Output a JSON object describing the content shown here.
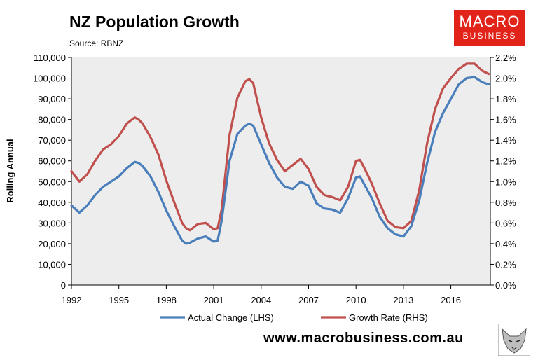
{
  "header": {
    "title": "NZ Population Growth",
    "source": "Source: RBNZ"
  },
  "logo": {
    "line1": "MACRO",
    "line2": "BUSINESS"
  },
  "footer": {
    "url": "www.macrobusiness.com.au"
  },
  "colors": {
    "lhs": "#4a7ebb",
    "rhs": "#c0504d",
    "plot_bg": "#ededed",
    "brand": "#e2231a"
  },
  "chart_data": {
    "type": "line",
    "title": "NZ Population Growth",
    "xlabel": "",
    "ylabel": "Rolling Annual",
    "xlim": [
      1992,
      2018.5
    ],
    "ylim_left": [
      0,
      110000
    ],
    "ylim_right": [
      0,
      2.2
    ],
    "x_ticks": [
      1992,
      1995,
      1998,
      2001,
      2004,
      2007,
      2010,
      2013,
      2016
    ],
    "x_tick_labels": [
      "1992",
      "1995",
      "1998",
      "2001",
      "2004",
      "2007",
      "2010",
      "2013",
      "2016"
    ],
    "y_left_ticks": [
      0,
      10000,
      20000,
      30000,
      40000,
      50000,
      60000,
      70000,
      80000,
      90000,
      100000,
      110000
    ],
    "y_left_tick_labels": [
      "0",
      "10,000",
      "20,000",
      "30,000",
      "40,000",
      "50,000",
      "60,000",
      "70,000",
      "80,000",
      "90,000",
      "100,000",
      "110,000"
    ],
    "y_right_ticks": [
      0,
      0.2,
      0.4,
      0.6,
      0.8,
      1.0,
      1.2,
      1.4,
      1.6,
      1.8,
      2.0,
      2.2
    ],
    "y_right_tick_labels": [
      "0.0%",
      "0.2%",
      "0.4%",
      "0.6%",
      "0.8%",
      "1.0%",
      "1.2%",
      "1.4%",
      "1.6%",
      "1.8%",
      "2.0%",
      "2.2%"
    ],
    "legend_position": "bottom",
    "grid": false,
    "series": [
      {
        "name": "Actual Change (LHS)",
        "axis": "left",
        "x": [
          1992,
          1992.5,
          1993,
          1993.5,
          1994,
          1994.5,
          1995,
          1995.5,
          1996,
          1996.25,
          1996.5,
          1997,
          1997.5,
          1998,
          1998.5,
          1999,
          1999.25,
          1999.5,
          2000,
          2000.5,
          2001,
          2001.25,
          2001.5,
          2002,
          2002.5,
          2003,
          2003.25,
          2003.5,
          2004,
          2004.5,
          2005,
          2005.5,
          2006,
          2006.5,
          2007,
          2007.5,
          2008,
          2008.5,
          2009,
          2009.5,
          2010,
          2010.25,
          2010.5,
          2011,
          2011.5,
          2012,
          2012.5,
          2013,
          2013.5,
          2014,
          2014.5,
          2015,
          2015.5,
          2016,
          2016.5,
          2017,
          2017.5,
          2018,
          2018.4
        ],
        "values": [
          38500,
          35000,
          38500,
          43500,
          47500,
          50000,
          52500,
          56500,
          59500,
          59000,
          57500,
          52500,
          45000,
          36000,
          28500,
          21500,
          20000,
          20500,
          22500,
          23500,
          21000,
          21500,
          31000,
          60000,
          73000,
          77000,
          78000,
          77000,
          68000,
          59000,
          52000,
          47500,
          46500,
          50000,
          48000,
          39500,
          37000,
          36500,
          35000,
          42000,
          52000,
          52500,
          49000,
          42000,
          33000,
          27500,
          24500,
          23500,
          28500,
          41000,
          59000,
          74000,
          83000,
          90000,
          97000,
          100000,
          100500,
          98000,
          97000
        ]
      },
      {
        "name": "Growth Rate (RHS)",
        "axis": "right",
        "x": [
          1992,
          1992.5,
          1993,
          1993.5,
          1994,
          1994.5,
          1995,
          1995.5,
          1996,
          1996.25,
          1996.5,
          1997,
          1997.5,
          1998,
          1998.5,
          1999,
          1999.25,
          1999.5,
          2000,
          2000.5,
          2001,
          2001.25,
          2001.5,
          2002,
          2002.5,
          2003,
          2003.25,
          2003.5,
          2004,
          2004.5,
          2005,
          2005.5,
          2006,
          2006.5,
          2007,
          2007.5,
          2008,
          2008.5,
          2009,
          2009.5,
          2010,
          2010.25,
          2010.5,
          2011,
          2011.5,
          2012,
          2012.5,
          2013,
          2013.5,
          2014,
          2014.5,
          2015,
          2015.5,
          2016,
          2016.5,
          2017,
          2017.5,
          2018,
          2018.4
        ],
        "values": [
          1.1,
          1.0,
          1.07,
          1.2,
          1.31,
          1.36,
          1.44,
          1.56,
          1.62,
          1.6,
          1.56,
          1.43,
          1.26,
          1.01,
          0.8,
          0.6,
          0.55,
          0.53,
          0.59,
          0.6,
          0.54,
          0.55,
          0.73,
          1.45,
          1.81,
          1.97,
          1.99,
          1.95,
          1.62,
          1.37,
          1.21,
          1.1,
          1.16,
          1.22,
          1.12,
          0.95,
          0.87,
          0.85,
          0.82,
          0.95,
          1.2,
          1.21,
          1.14,
          0.98,
          0.79,
          0.62,
          0.56,
          0.55,
          0.62,
          0.92,
          1.37,
          1.7,
          1.9,
          2.0,
          2.09,
          2.14,
          2.14,
          2.07,
          2.04
        ]
      }
    ]
  }
}
